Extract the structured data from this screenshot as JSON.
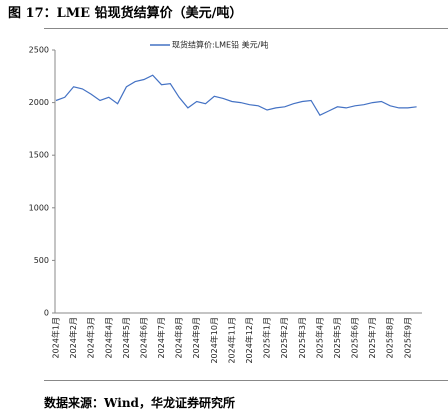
{
  "title": "图 17：LME 铅现货结算价（美元/吨）",
  "source": "数据来源：Wind，华龙证券研究所",
  "chart_data": {
    "type": "line",
    "categories": [
      "2024年1月",
      null,
      "2024年2月",
      null,
      "2024年3月",
      null,
      "2024年4月",
      null,
      "2024年5月",
      null,
      "2024年6月",
      null,
      "2024年7月",
      null,
      "2024年8月",
      null,
      "2024年9月",
      null,
      "2024年10月",
      null,
      "2024年11月",
      null,
      "2024年12月",
      null,
      "2025年1月",
      null,
      "2025年2月",
      null,
      "2025年3月",
      null,
      "2025年4月",
      null,
      "2025年5月",
      null,
      "2025年6月",
      null,
      "2025年7月",
      null,
      "2025年8月",
      null,
      "2025年9月",
      null
    ],
    "series": [
      {
        "name": "现货结算价:LME铅 美元/吨",
        "color": "#4472c4",
        "values": [
          2020,
          2050,
          2150,
          2130,
          2080,
          2020,
          2050,
          1990,
          2150,
          2200,
          2220,
          2260,
          2170,
          2180,
          2050,
          1950,
          2010,
          1990,
          2060,
          2040,
          2010,
          2000,
          1980,
          1970,
          1930,
          1950,
          1960,
          1990,
          2010,
          2020,
          1880,
          1920,
          1960,
          1950,
          1970,
          1980,
          2000,
          2010,
          1970,
          1950,
          1950,
          1960
        ]
      }
    ],
    "ylim": [
      0,
      2500
    ],
    "yticks": [
      0,
      500,
      1000,
      1500,
      2000,
      2500
    ],
    "grid": false
  }
}
